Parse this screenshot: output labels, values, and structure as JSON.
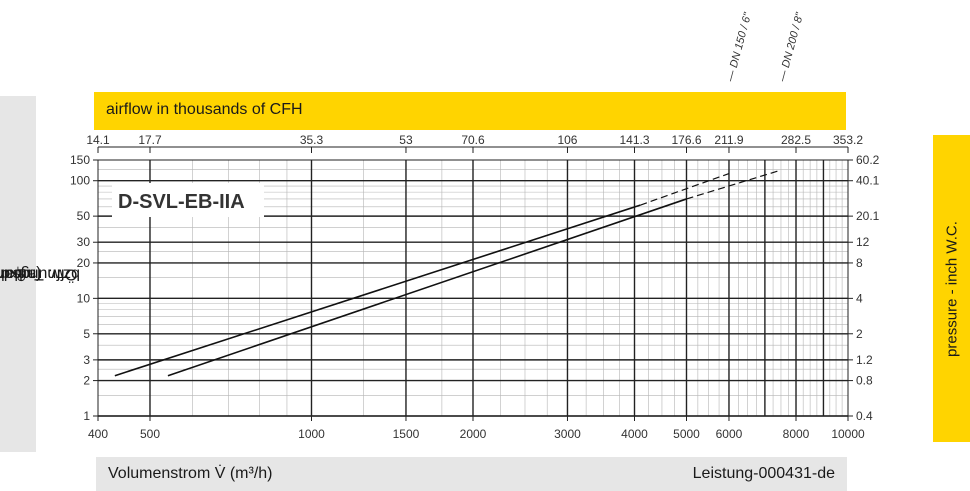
{
  "chart_data": {
    "type": "line",
    "title": "D-SVL-EB-IIA",
    "xlabel": "Volumenstrom V̇ (m³/h)",
    "xlabel_top": "airflow in thousands of CFH",
    "ylabel_prefix": "Öffnungsdruck P",
    "ylabel_sub1": "O",
    "ylabel_mid": " bzw. Tankdruck P",
    "ylabel_sub2": "T",
    "ylabel_suffix": " (mbar)",
    "ylabel_right": "pressure - inch W.C.",
    "reference": "Leistung-000431-de",
    "x_scale": "log",
    "y_scale": "log",
    "xlim": [
      400,
      10000
    ],
    "ylim": [
      1,
      150
    ],
    "x_ticks": [
      400,
      500,
      1000,
      1500,
      2000,
      3000,
      4000,
      5000,
      6000,
      8000,
      10000
    ],
    "x_tick_labels": [
      "400",
      "500",
      "1000",
      "1500",
      "2000",
      "3000",
      "4000",
      "5000",
      "6000",
      "8000",
      "10000"
    ],
    "x_top_ticks": [
      400,
      500,
      1000,
      1500,
      2000,
      3000,
      4000,
      5000,
      6000,
      8000,
      10000
    ],
    "x_top_tick_labels": [
      "14.1",
      "17.7",
      "35.3",
      "53",
      "70.6",
      "106",
      "141.3",
      "176.6",
      "211.9",
      "282.5",
      "353.2"
    ],
    "y_ticks": [
      1,
      2,
      3,
      5,
      10,
      20,
      30,
      50,
      100,
      150
    ],
    "y_tick_labels": [
      "1",
      "2",
      "3",
      "5",
      "10",
      "20",
      "30",
      "50",
      "100",
      "150"
    ],
    "y_right_ticks": [
      1,
      2,
      3,
      5,
      10,
      20,
      30,
      50,
      100,
      150
    ],
    "y_right_tick_labels": [
      "0.4",
      "0.8",
      "1.2",
      "2",
      "4",
      "8",
      "12",
      "20.1",
      "40.1",
      "60.2"
    ],
    "x_thick_lines": [
      500,
      1000,
      1500,
      2000,
      3000,
      4000,
      5000,
      6000,
      7000,
      8000,
      9000
    ],
    "y_thick_lines": [
      1,
      2,
      3,
      5,
      10,
      20,
      30,
      50,
      100
    ],
    "series": [
      {
        "name": "DN 150 / 6\"",
        "solid": [
          [
            430,
            2.2
          ],
          [
            4100,
            62
          ]
        ],
        "dashed": [
          [
            4100,
            62
          ],
          [
            6000,
            115
          ]
        ]
      },
      {
        "name": "DN 200 / 8\"",
        "solid": [
          [
            540,
            2.2
          ],
          [
            5000,
            70
          ]
        ],
        "dashed": [
          [
            5000,
            70
          ],
          [
            7500,
            123
          ]
        ]
      }
    ]
  }
}
